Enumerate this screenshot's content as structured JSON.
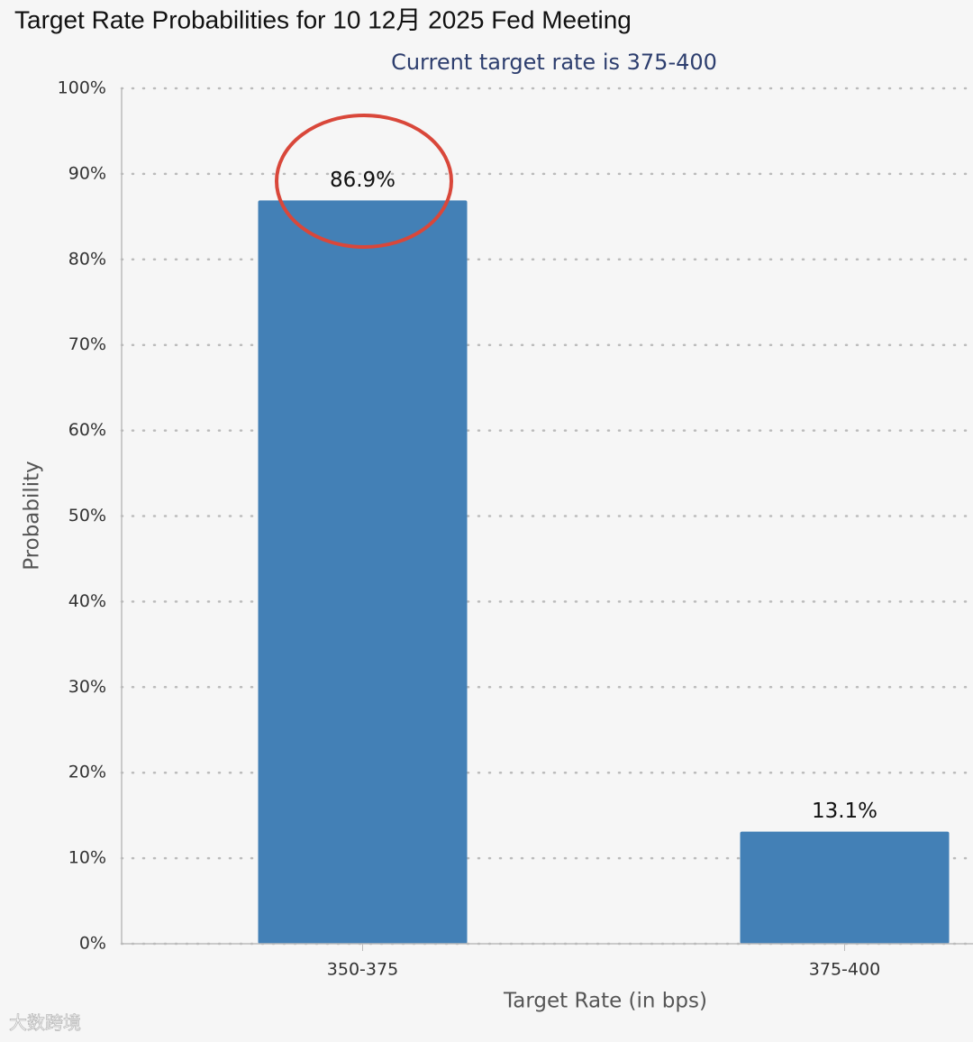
{
  "chart_data": {
    "type": "bar",
    "title": "Target Rate Probabilities for 10 12月 2025 Fed Meeting",
    "subtitle": "Current target rate is 375-400",
    "x_label": "Target Rate (in bps)",
    "y_label": "Probability",
    "categories": [
      "350-375",
      "375-400"
    ],
    "values": [
      86.9,
      13.1
    ],
    "value_labels": [
      "86.9%",
      "13.1%"
    ],
    "color": "#4380b6",
    "ylim": [
      0,
      100
    ],
    "yticks": [
      {
        "value": 0,
        "label": "0%"
      },
      {
        "value": 10,
        "label": "10%"
      },
      {
        "value": 20,
        "label": "20%"
      },
      {
        "value": 30,
        "label": "30%"
      },
      {
        "value": 40,
        "label": "40%"
      },
      {
        "value": 50,
        "label": "50%"
      },
      {
        "value": 60,
        "label": "60%"
      },
      {
        "value": 70,
        "label": "70%"
      },
      {
        "value": 80,
        "label": "80%"
      },
      {
        "value": 90,
        "label": "90%"
      },
      {
        "value": 100,
        "label": "100%"
      }
    ],
    "grid": true
  },
  "watermark": "大数跨境"
}
